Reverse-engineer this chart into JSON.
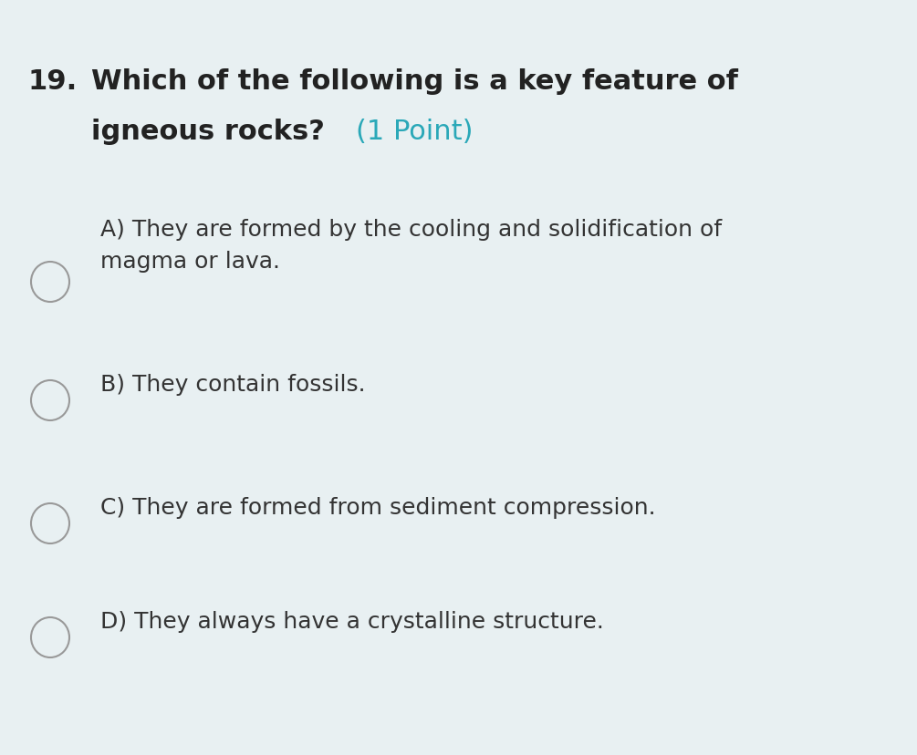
{
  "background_color": "#e8f0f2",
  "question_number": "19.",
  "question_line1": "Which of the following is a key feature of",
  "question_line2": "igneous rocks?",
  "question_point": "(1 Point)",
  "question_color": "#222222",
  "point_color": "#2aa8b8",
  "options": [
    "A) They are formed by the cooling and solidification of\nmagma or lava.",
    "B) They contain fossils.",
    "C) They are formed from sediment compression.",
    "D) They always have a crystalline structure."
  ],
  "option_color": "#333333",
  "circle_edge_color": "#999999",
  "circle_lw": 1.5,
  "font_size_question": 22,
  "font_size_options": 18,
  "font_size_number": 22
}
